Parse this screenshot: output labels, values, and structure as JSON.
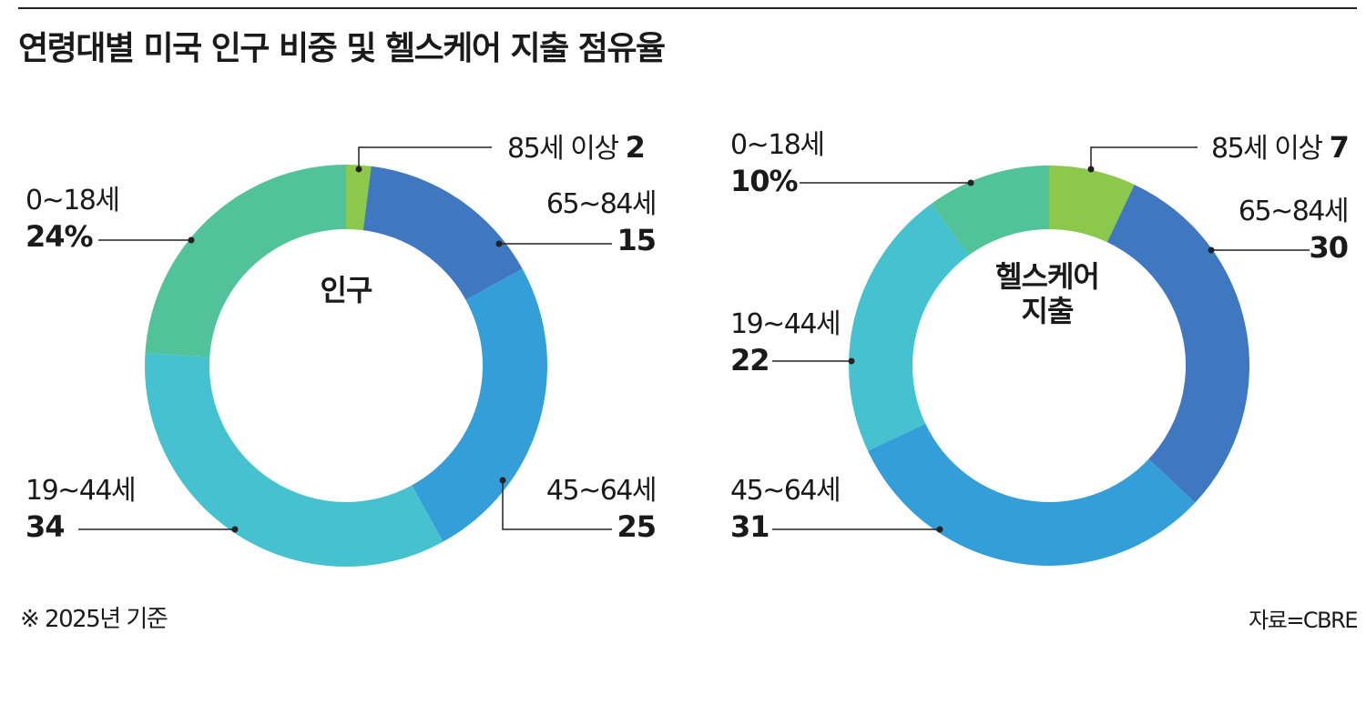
{
  "title": "연령대별 미국 인구 비중 및 헬스케어 지출 점유율",
  "footnote": "※ 2025년 기준",
  "source": "자료=CBRE",
  "chart_data": [
    {
      "type": "pie",
      "center_label": "인구",
      "unit": "%",
      "categories": [
        "85세 이상",
        "65~84세",
        "45~64세",
        "19~44세",
        "0~18세"
      ],
      "values": [
        2,
        15,
        25,
        34,
        24
      ],
      "value_labels": [
        "2",
        "15",
        "25",
        "34",
        "24%"
      ],
      "colors": [
        "#8cc84b",
        "#3f78c0",
        "#349ed8",
        "#46c1d0",
        "#52c29a"
      ]
    },
    {
      "type": "pie",
      "center_label": "헬스케어\n지출",
      "unit": "%",
      "categories": [
        "85세 이상",
        "65~84세",
        "45~64세",
        "19~44세",
        "0~18세"
      ],
      "values": [
        7,
        30,
        31,
        22,
        10
      ],
      "value_labels": [
        "7",
        "30",
        "31",
        "22",
        "10%"
      ],
      "colors": [
        "#8cc84b",
        "#3f78c0",
        "#349ed8",
        "#46c1d0",
        "#52c29a"
      ]
    }
  ]
}
